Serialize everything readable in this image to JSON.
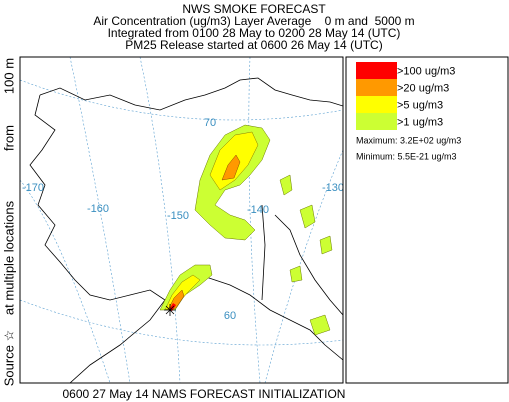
{
  "header": {
    "title": "NWS SMOKE FORECAST",
    "lines": [
      "Air Concentration (ug/m3) Layer Average    0 m and  5000 m",
      "Integrated from 0100 28 May to 0200 28 May 14 (UTC)",
      "PM25 Release started at 0600 26 May 14 (UTC)"
    ]
  },
  "side_text": [
    "Source ☆",
    "at multiple locations",
    "from",
    "100 m"
  ],
  "map": {
    "grid_labels": [
      "70",
      "60",
      "-170",
      "-160",
      "-150",
      "-140",
      "-130"
    ]
  },
  "legend": {
    "items": [
      {
        "label": ">100 ug/m3",
        "color": "#ff0000"
      },
      {
        "label": ">20 ug/m3",
        "color": "#ff9900"
      },
      {
        "label": ">5 ug/m3",
        "color": "#ffff00"
      },
      {
        "label": ">1 ug/m3",
        "color": "#ccff33"
      }
    ],
    "maximum": "Maximum: 3.2E+02 ug/m3",
    "minimum": "Minimum: 5.5E-21 ug/m3"
  },
  "footer": "0600 27 May 14 NAMS FORECAST INITIALIZATION"
}
